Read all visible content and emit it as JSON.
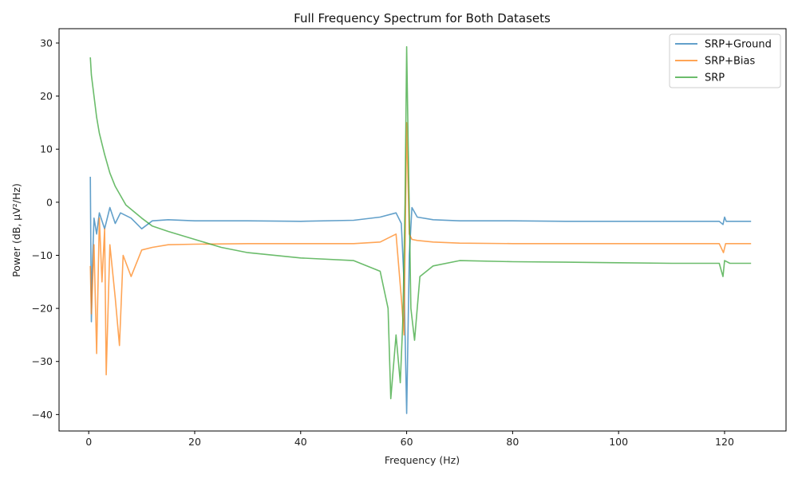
{
  "chart_data": {
    "type": "line",
    "title": "Full Frequency Spectrum for Both Datasets",
    "xlabel": "Frequency (Hz)",
    "ylabel": "Power (dB, µV²/Hz)",
    "xlim": [
      -5.6,
      131.6
    ],
    "ylim": [
      -43.1,
      32.7
    ],
    "xticks": [
      0,
      20,
      40,
      60,
      80,
      100,
      120
    ],
    "yticks": [
      -40,
      -30,
      -20,
      -10,
      0,
      10,
      20,
      30
    ],
    "xtick_labels": [
      "0",
      "20",
      "40",
      "60",
      "80",
      "100",
      "120"
    ],
    "ytick_labels": [
      "−40",
      "−30",
      "−20",
      "−10",
      "0",
      "10",
      "20",
      "30"
    ],
    "grid": false,
    "legend_position": "top-right",
    "series": [
      {
        "name": "SRP+Ground",
        "color": "#1f77b4",
        "x": [
          0.3,
          0.5,
          0.7,
          1,
          1.5,
          2,
          3,
          4,
          5,
          6,
          8,
          10,
          12,
          15,
          20,
          30,
          40,
          50,
          55,
          58,
          59,
          59.5,
          60,
          60.5,
          61,
          62,
          65,
          70,
          80,
          90,
          100,
          110,
          119,
          119.7,
          120,
          120.3,
          121,
          125
        ],
        "values": [
          4.8,
          -22.5,
          -12,
          -3,
          -6,
          -2,
          -5,
          -1,
          -4,
          -2,
          -3,
          -5,
          -3.5,
          -3.3,
          -3.5,
          -3.5,
          -3.6,
          -3.4,
          -2.8,
          -2,
          -4,
          -15,
          -39.8,
          -10,
          -1,
          -2.8,
          -3.3,
          -3.5,
          -3.5,
          -3.6,
          -3.6,
          -3.6,
          -3.6,
          -4.2,
          -2.8,
          -3.6,
          -3.6,
          -3.6
        ]
      },
      {
        "name": "SRP+Bias",
        "color": "#ff7f0e",
        "x": [
          0.3,
          0.5,
          1,
          1.5,
          2,
          2.5,
          3,
          3.3,
          4,
          5,
          5.8,
          6.5,
          8,
          10,
          12,
          15,
          20,
          30,
          40,
          50,
          55,
          58,
          59,
          59.5,
          60,
          60.5,
          61,
          62,
          65,
          70,
          80,
          100,
          119,
          119.8,
          120.2,
          125
        ],
        "values": [
          -12,
          -21,
          -8,
          -28.5,
          -3,
          -15,
          -5,
          -32.5,
          -8,
          -18,
          -27,
          -10,
          -14,
          -9,
          -8.5,
          -8,
          -7.9,
          -7.8,
          -7.8,
          -7.8,
          -7.5,
          -6,
          -18,
          -25,
          15,
          -6,
          -7,
          -7.2,
          -7.5,
          -7.7,
          -7.8,
          -7.8,
          -7.8,
          -9.5,
          -7.8,
          -7.8
        ]
      },
      {
        "name": "SRP",
        "color": "#2ca02c",
        "x": [
          0.3,
          0.5,
          1,
          1.5,
          2,
          3,
          4,
          5,
          7,
          10,
          12,
          15,
          20,
          25,
          30,
          40,
          50,
          55,
          56.5,
          57,
          58,
          58.8,
          59.3,
          59.7,
          60,
          60.3,
          60.8,
          61.5,
          62.5,
          65,
          70,
          80,
          90,
          100,
          110,
          119,
          119.7,
          120,
          121,
          125
        ],
        "values": [
          27.3,
          24,
          20,
          16,
          13,
          9,
          5.5,
          3,
          -0.5,
          -3,
          -4.5,
          -5.5,
          -7,
          -8.5,
          -9.5,
          -10.5,
          -11,
          -13,
          -20,
          -37,
          -25,
          -34,
          -22,
          0,
          29.3,
          10,
          -20,
          -26,
          -14,
          -12,
          -11,
          -11.2,
          -11.3,
          -11.4,
          -11.5,
          -11.5,
          -14,
          -11,
          -11.5,
          -11.5
        ]
      }
    ]
  }
}
